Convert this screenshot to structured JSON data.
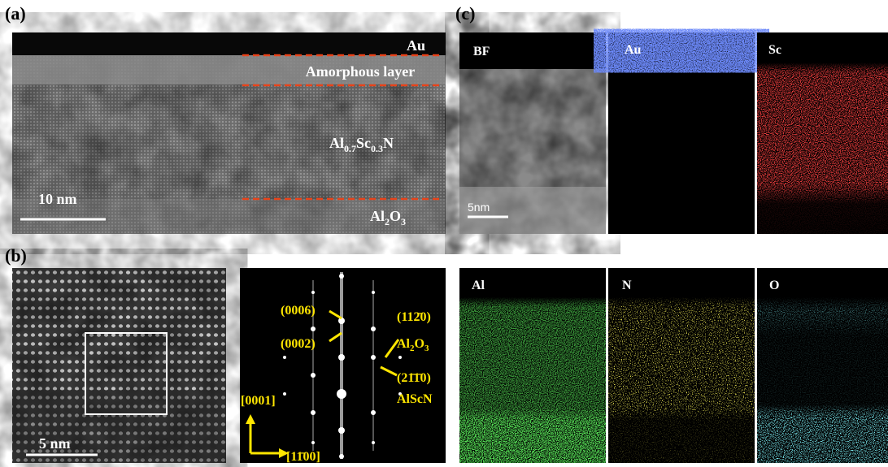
{
  "panels": {
    "a": {
      "label": "(a)",
      "top_layer": "Au",
      "amorphous": "Amorphous layer",
      "film": [
        "Al",
        "0.7",
        "Sc",
        "0.3",
        "N"
      ],
      "scale": "10 nm",
      "substrate": [
        "Al",
        "2",
        "O",
        "3"
      ]
    },
    "b": {
      "label": "(b)",
      "scale": "5 nm",
      "spots": [
        "(0006)",
        "(0002)",
        "(112̄0)",
        "(21̄1̄0)"
      ],
      "substrate": [
        "Al",
        "2",
        "O",
        "3"
      ],
      "film": "AlScN",
      "axes": [
        "[0001]",
        "[11̄00]"
      ]
    },
    "c": {
      "label": "(c)",
      "maps": [
        "BF",
        "Au",
        "Sc",
        "Al",
        "N",
        "O"
      ],
      "scale": "5nm"
    }
  }
}
